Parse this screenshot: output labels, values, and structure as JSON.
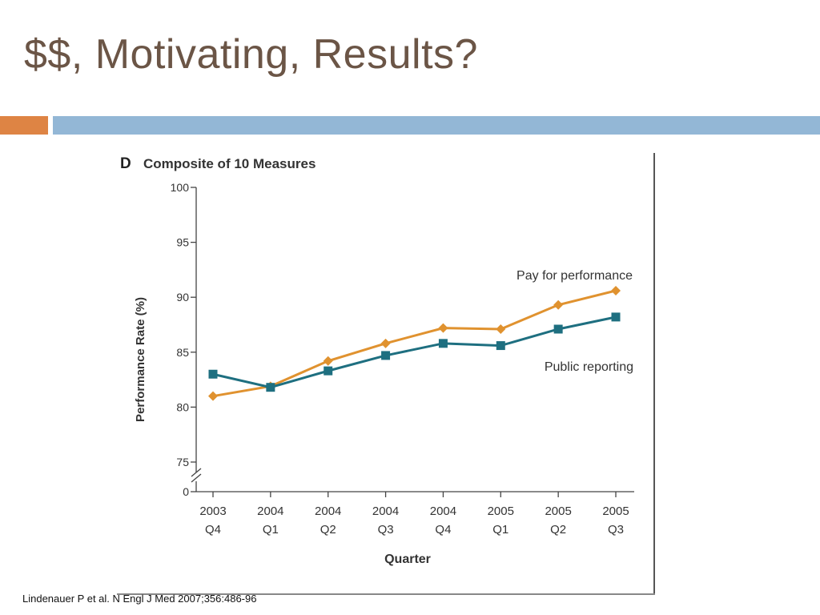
{
  "slide": {
    "title": "$$, Motivating, Results?",
    "citation": "Lindenauer P et al. N Engl J Med 2007;356:486-96",
    "colors": {
      "title": "#6b5546",
      "accent_orange": "#de8444",
      "accent_blue": "#93b7d6"
    }
  },
  "chart_data": {
    "type": "line",
    "panel_letter": "D",
    "title": "Composite of 10 Measures",
    "xlabel": "Quarter",
    "ylabel": "Performance Rate (%)",
    "categories": [
      [
        "2003",
        "Q4"
      ],
      [
        "2004",
        "Q1"
      ],
      [
        "2004",
        "Q2"
      ],
      [
        "2004",
        "Q3"
      ],
      [
        "2004",
        "Q4"
      ],
      [
        "2005",
        "Q1"
      ],
      [
        "2005",
        "Q2"
      ],
      [
        "2005",
        "Q3"
      ]
    ],
    "yticks": [
      "0",
      "75",
      "80",
      "85",
      "90",
      "95",
      "100"
    ],
    "ylim": [
      75,
      100
    ],
    "axis_break": true,
    "grid": false,
    "series": [
      {
        "name": "Pay for performance",
        "color": "#e0922f",
        "marker": "diamond",
        "values": [
          81.0,
          81.9,
          84.2,
          85.8,
          87.2,
          87.1,
          89.3,
          90.6
        ]
      },
      {
        "name": "Public reporting",
        "color": "#1e6f80",
        "marker": "square",
        "values": [
          83.0,
          81.8,
          83.3,
          84.7,
          85.8,
          85.6,
          87.1,
          88.2
        ]
      }
    ]
  }
}
